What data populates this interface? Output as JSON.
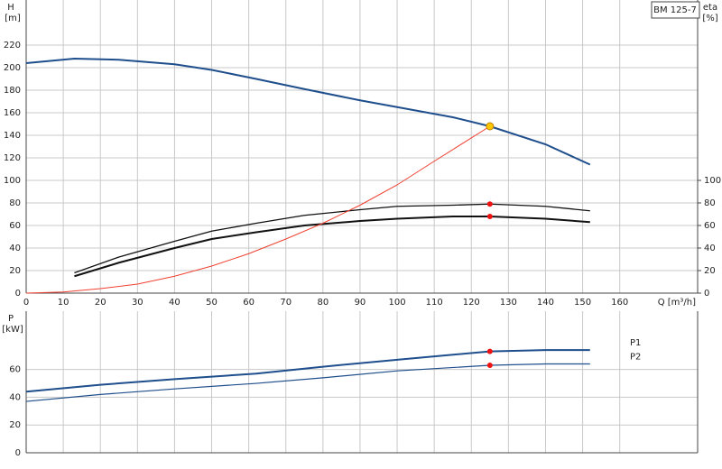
{
  "chart_data": [
    {
      "type": "line",
      "title": "BM 125-7",
      "ylabel": "H",
      "yunit": "[m]",
      "y2label": "eta",
      "y2unit": "[%]",
      "xlabel": "Q [m³/h]",
      "xlim": [
        0,
        181
      ],
      "xticks": [
        0,
        10,
        20,
        30,
        40,
        50,
        60,
        70,
        80,
        90,
        100,
        110,
        120,
        130,
        140,
        150,
        160
      ],
      "show_xtick_labels": true,
      "ylim": [
        0,
        260
      ],
      "yticks": [
        0,
        20,
        40,
        60,
        80,
        100,
        120,
        140,
        160,
        180,
        200,
        220
      ],
      "y2lim": [
        0,
        260
      ],
      "y2ticks": [
        0,
        20,
        40,
        60,
        80,
        100
      ],
      "grid": true,
      "series": [
        {
          "color": "#1f4e8c",
          "width": 2,
          "x": [
            0,
            13,
            25,
            40,
            50,
            62,
            75,
            90,
            100,
            115,
            125,
            140,
            152
          ],
          "values": [
            204,
            208,
            207,
            203,
            198,
            190,
            181,
            171,
            165,
            156,
            148,
            132,
            114
          ]
        },
        {
          "color": "#111111",
          "width": 1.3,
          "axis": "y2",
          "x": [
            13,
            25,
            40,
            50,
            62,
            75,
            90,
            100,
            115,
            125,
            140,
            152
          ],
          "values": [
            18,
            32,
            46,
            55,
            62,
            69,
            74,
            77,
            78,
            79,
            77,
            73
          ]
        },
        {
          "color": "#111111",
          "width": 2,
          "axis": "y2",
          "x": [
            13,
            25,
            40,
            50,
            62,
            75,
            90,
            100,
            115,
            125,
            140,
            152
          ],
          "values": [
            15,
            27,
            40,
            48,
            54,
            60,
            64,
            66,
            68,
            68,
            66,
            63
          ]
        },
        {
          "color": "#f04030",
          "width": 1,
          "x": [
            0,
            10,
            20,
            30,
            40,
            50,
            60,
            70,
            80,
            90,
            100,
            110,
            125
          ],
          "values": [
            0,
            1,
            4,
            8,
            15,
            24,
            35,
            48,
            62,
            78,
            96,
            117,
            148
          ]
        }
      ],
      "points": [
        {
          "x": 125,
          "y": 148,
          "color": "#ffc800"
        },
        {
          "x": 125,
          "y": 79,
          "color": "#ee1111",
          "axis": "y2"
        },
        {
          "x": 125,
          "y": 68,
          "color": "#ee1111",
          "axis": "y2"
        }
      ]
    },
    {
      "type": "line",
      "ylabel": "P",
      "yunit": "[kW]",
      "xlim": [
        0,
        181
      ],
      "xticks": [
        0,
        10,
        20,
        30,
        40,
        50,
        60,
        70,
        80,
        90,
        100,
        110,
        120,
        130,
        140,
        150,
        160
      ],
      "show_xtick_labels": false,
      "ylim": [
        0,
        102
      ],
      "yticks": [
        0,
        20,
        40,
        60
      ],
      "grid": true,
      "series": [
        {
          "name": "P1",
          "color": "#1f4e8c",
          "width": 2,
          "x": [
            0,
            20,
            40,
            62,
            80,
            100,
            125,
            140,
            152
          ],
          "values": [
            44,
            49,
            53,
            57,
            62,
            67,
            73,
            74,
            74
          ]
        },
        {
          "name": "P2",
          "color": "#1f4e8c",
          "width": 1.2,
          "x": [
            0,
            20,
            40,
            62,
            80,
            100,
            125,
            140,
            152
          ],
          "values": [
            37,
            42,
            46,
            50,
            54,
            59,
            63,
            64,
            64
          ]
        }
      ],
      "points": [
        {
          "x": 125,
          "y": 73,
          "color": "#ee1111"
        },
        {
          "x": 125,
          "y": 63,
          "color": "#ee1111"
        }
      ]
    }
  ]
}
